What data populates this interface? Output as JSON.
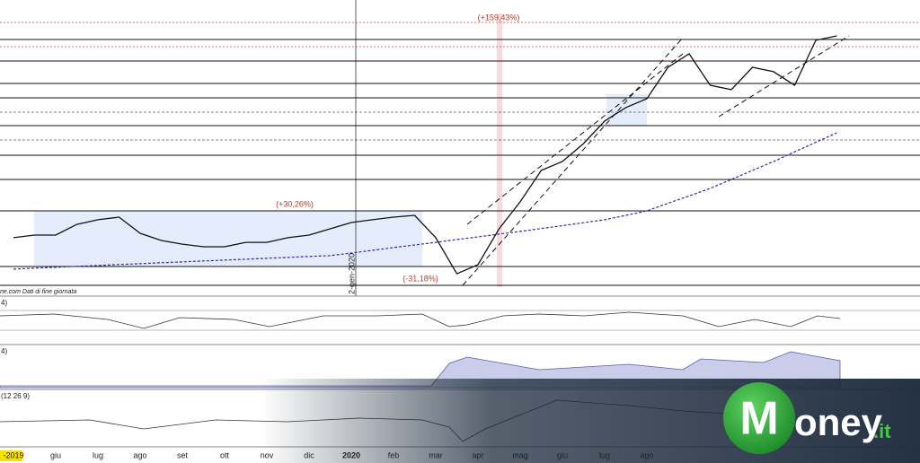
{
  "chart_data": {
    "type": "line",
    "categories": [
      "-2019",
      null,
      "giu",
      null,
      "lug",
      null,
      "ago",
      null,
      "set",
      null,
      "ott",
      null,
      "nov",
      null,
      "dic",
      null,
      "2020",
      null,
      "feb",
      null,
      "mar",
      null,
      "apr",
      null,
      "mag",
      null,
      "giu",
      null,
      "lug",
      null,
      "ago",
      null,
      null,
      null,
      null,
      null,
      null,
      null,
      null,
      null
    ],
    "series": [
      {
        "color": "#111111",
        "values": [
          13.05,
          13.21,
          13.21,
          13.86,
          14.14,
          14.3,
          13.32,
          12.88,
          12.66,
          12.5,
          12.5,
          12.77,
          12.77,
          13.05,
          13.21,
          13.59,
          13.97,
          14.14,
          14.3,
          14.41,
          13.05,
          10.86,
          11.41,
          13.59,
          15.23,
          17.14,
          17.68,
          18.77,
          20.14,
          20.96,
          21.5,
          23.41,
          24.23,
          22.32,
          22.05,
          23.41,
          23.14,
          22.32,
          25.05,
          25.32
        ]
      },
      {
        "color": "#2c2ca8",
        "dashed": true,
        "values": [
          11.14,
          11.2,
          11.25,
          11.31,
          11.36,
          11.42,
          11.47,
          11.53,
          11.58,
          11.64,
          11.69,
          11.74,
          11.8,
          11.85,
          11.91,
          11.96,
          12.12,
          12.28,
          12.45,
          12.61,
          12.77,
          12.94,
          13.1,
          13.27,
          13.43,
          13.61,
          13.78,
          13.96,
          14.14,
          14.41,
          14.68,
          15.14,
          15.59,
          16.05,
          16.59,
          17.14,
          17.68,
          18.27,
          18.85,
          19.43
        ]
      }
    ],
    "ylim": [
      9.5,
      27.5
    ],
    "annotations": [
      "(+159,43%)",
      "(+30,26%)",
      "(-31,18%)",
      "2-gen-2020"
    ],
    "source": "ne.com  Dati di fine giornata",
    "panel_labels": [
      "4)",
      "4)",
      "(12 26 9)"
    ]
  },
  "brand": {
    "initial": "M",
    "name": "oney",
    "suffix": ".it"
  }
}
